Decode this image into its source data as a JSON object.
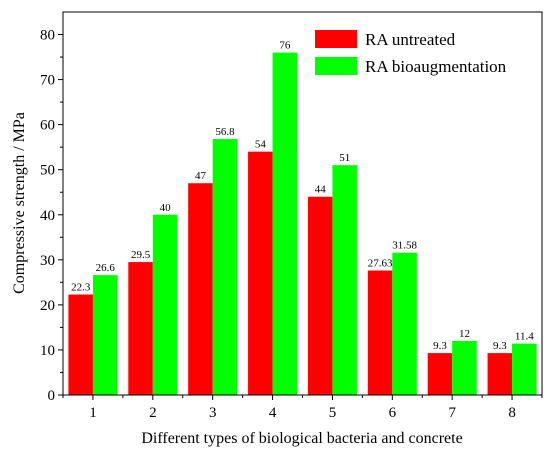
{
  "chart_data": {
    "type": "bar",
    "xlabel": "Different types of biological bacteria and concrete",
    "ylabel": "Compressive strength / MPa",
    "ylim": [
      0,
      85
    ],
    "yticks": [
      0,
      10,
      20,
      30,
      40,
      50,
      60,
      70,
      80
    ],
    "categories": [
      "1",
      "2",
      "3",
      "4",
      "5",
      "6",
      "7",
      "8"
    ],
    "grid": false,
    "legend_position": "top-right",
    "series": [
      {
        "name": "RA untreated",
        "color": "#ff0000",
        "values": [
          22.3,
          29.5,
          47,
          54,
          44,
          27.63,
          9.3,
          9.3
        ],
        "labels": [
          "22.3",
          "29.5",
          "47",
          "54",
          "44",
          "27.63",
          "9.3",
          "9.3"
        ]
      },
      {
        "name": "RA bioaugmentation",
        "color": "#00ff00",
        "values": [
          26.6,
          40,
          56.8,
          76,
          51,
          31.58,
          12,
          11.4
        ],
        "labels": [
          "26.6",
          "40",
          "56.8",
          "76",
          "51",
          "31.58",
          "12",
          "11.4"
        ]
      }
    ]
  }
}
